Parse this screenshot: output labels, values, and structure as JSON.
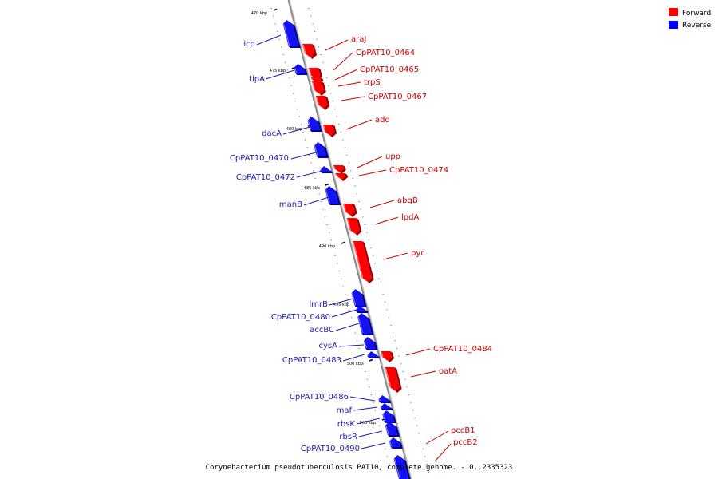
{
  "caption": "Corynebacterium pseudotuberculosis PAT10, complete genome. - 0..2335323",
  "legend": [
    {
      "label": "Forward",
      "color": "#ff0000"
    },
    {
      "label": "Reverse",
      "color": "#0000ff"
    }
  ],
  "colors": {
    "forward": "#ff0000",
    "reverse": "#1212f2",
    "forward_text": "#cc0000",
    "reverse_text": "#1a1aaa",
    "backbone": "#888888"
  },
  "ticks": [
    "470 kbp",
    "475 kbp",
    "480 kbp",
    "485 kbp",
    "490 kbp",
    "495 kbp",
    "500 kbp",
    "505 kbp"
  ],
  "genes": {
    "forward": [
      "araJ",
      "CpPAT10_0464",
      "CpPAT10_0465",
      "trpS",
      "CpPAT10_0467",
      "add",
      "upp",
      "CpPAT10_0474",
      "abgB",
      "lpdA",
      "pyc",
      "CpPAT10_0484",
      "oatA",
      "pccB1",
      "pccB2"
    ],
    "reverse": [
      "icd",
      "tipA",
      "dacA",
      "CpPAT10_0470",
      "CpPAT10_0472",
      "manB",
      "lmrB",
      "CpPAT10_0480",
      "accBC",
      "cysA",
      "CpPAT10_0483",
      "CpPAT10_0486",
      "maf",
      "rbsK",
      "rbsR",
      "CpPAT10_0490"
    ]
  }
}
